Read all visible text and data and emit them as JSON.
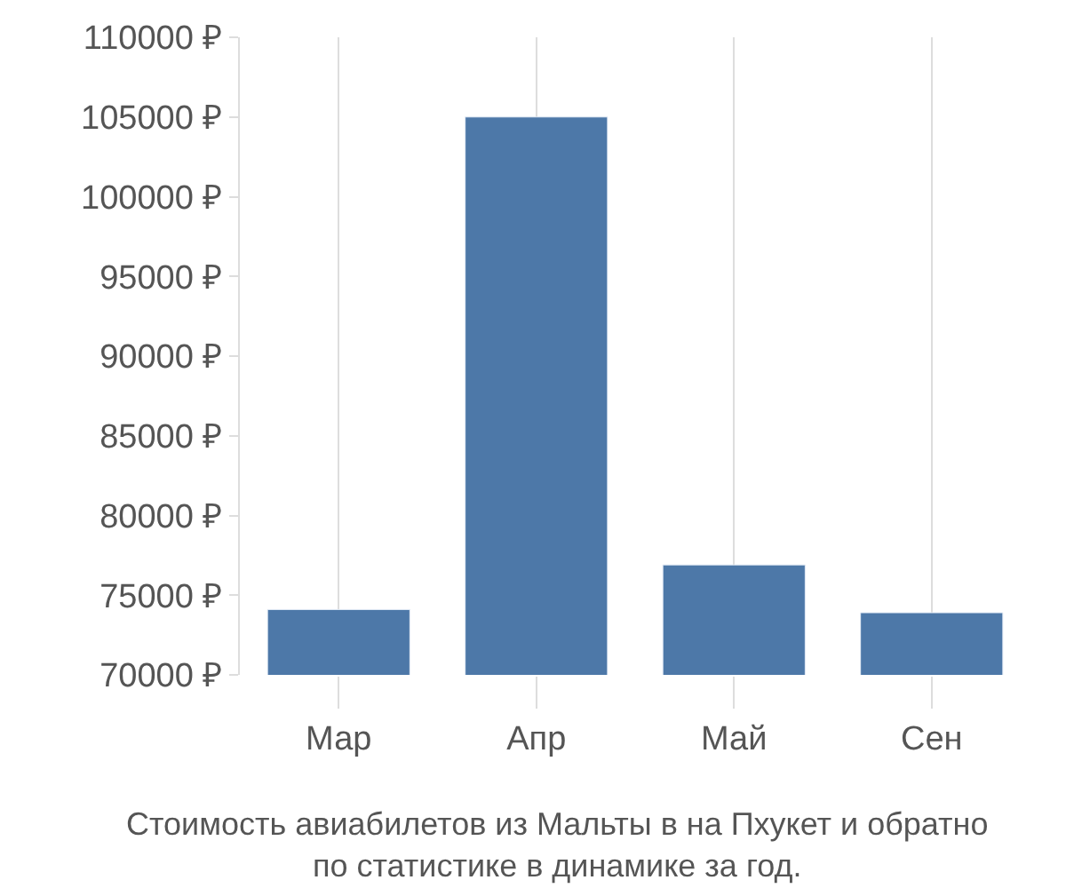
{
  "chart_data": {
    "type": "bar",
    "categories": [
      "Мар",
      "Апр",
      "Май",
      "Сен"
    ],
    "values": [
      74100,
      105000,
      76900,
      73900
    ],
    "color": "#4d78a8",
    "ylim": [
      70000,
      110000
    ],
    "yticks": [
      {
        "value": 70000,
        "label": "70000 ₽"
      },
      {
        "value": 75000,
        "label": "75000 ₽"
      },
      {
        "value": 80000,
        "label": "80000 ₽"
      },
      {
        "value": 85000,
        "label": "85000 ₽"
      },
      {
        "value": 90000,
        "label": "90000 ₽"
      },
      {
        "value": 95000,
        "label": "95000 ₽"
      },
      {
        "value": 100000,
        "label": "100000 ₽"
      },
      {
        "value": 105000,
        "label": "105000 ₽"
      },
      {
        "value": 110000,
        "label": "110000 ₽"
      }
    ],
    "grid": "x",
    "annotations": [
      "Стоимость авиабилетов из Мальты в на Пхукет и обратно\nпо статистике в динамике за год."
    ]
  }
}
